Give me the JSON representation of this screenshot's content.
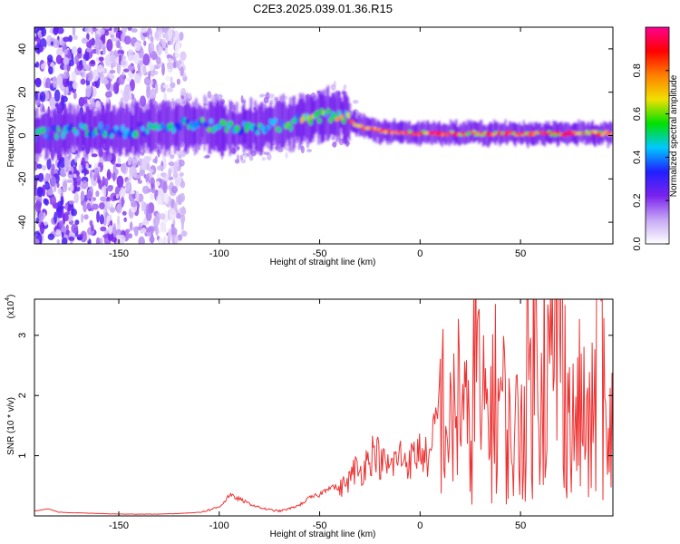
{
  "figure": {
    "title": "C2E3.2025.039.01.36.R15"
  },
  "chart_data": [
    {
      "type": "heatmap",
      "xlabel": "Height of straight line (km)",
      "ylabel": "Frequency (Hz)",
      "xlim": [
        -192,
        96
      ],
      "ylim": [
        -50,
        50
      ],
      "xticks": [
        -150,
        -100,
        -50,
        0,
        50
      ],
      "yticks": [
        -40,
        -20,
        0,
        20,
        40
      ],
      "colorbar": {
        "label": "Normalized spectral amplitude",
        "range": [
          0,
          1
        ],
        "ticks": [
          "0.0",
          "0.2",
          "0.4",
          "0.6",
          "0.8"
        ],
        "colormap": [
          "#ffffff",
          "#c6a8f5",
          "#7a22ee",
          "#2020ff",
          "#00c8ff",
          "#00e000",
          "#f0e000",
          "#ff8000",
          "#ff0000",
          "#ff0090"
        ]
      },
      "ridge": {
        "description_points_x": [
          -192,
          -170,
          -150,
          -130,
          -110,
          -90,
          -75,
          -60,
          -50,
          -40,
          -35,
          -30,
          -20,
          0,
          25,
          50,
          75,
          96
        ],
        "frequency_y": [
          0,
          3,
          2,
          4,
          5,
          3,
          4,
          7,
          9,
          10,
          7,
          4,
          2,
          1,
          1,
          1,
          1,
          1
        ]
      }
    },
    {
      "type": "line",
      "xlabel": "Height of straight line (km)",
      "ylabel": "SNR (10 * v/v)",
      "yscale_label": "(x10",
      "yscale_exp": "4",
      "xlim": [
        -192,
        96
      ],
      "ylim": [
        0,
        3.6
      ],
      "xticks": [
        -150,
        -100,
        -50,
        0,
        50
      ],
      "yticks": [
        1,
        2,
        3
      ],
      "series": [
        {
          "color": "#ee3333",
          "x": [
            -192,
            -185,
            -180,
            -170,
            -160,
            -150,
            -140,
            -130,
            -120,
            -110,
            -105,
            -100,
            -97,
            -95,
            -92,
            -90,
            -85,
            -80,
            -75,
            -70,
            -65,
            -60,
            -55,
            -50,
            -45,
            -40,
            -35,
            -32,
            -30,
            -25,
            -22,
            -20,
            -15,
            -10,
            -5,
            0,
            5,
            10,
            15,
            20,
            25,
            28,
            30,
            35,
            40,
            45,
            50,
            55,
            60,
            65,
            70,
            75,
            80,
            85,
            90,
            93,
            96
          ],
          "y": [
            0.08,
            0.12,
            0.06,
            0.05,
            0.04,
            0.03,
            0.03,
            0.03,
            0.04,
            0.06,
            0.1,
            0.15,
            0.25,
            0.35,
            0.3,
            0.28,
            0.2,
            0.14,
            0.1,
            0.08,
            0.12,
            0.18,
            0.3,
            0.35,
            0.5,
            0.45,
            0.6,
            0.8,
            0.7,
            1.0,
            1.1,
            0.9,
            0.8,
            1.0,
            0.9,
            1.1,
            0.9,
            2.0,
            1.3,
            2.2,
            1.0,
            3.25,
            1.5,
            1.8,
            2.0,
            1.2,
            1.5,
            2.4,
            3.0,
            2.2,
            3.7,
            1.3,
            1.8,
            1.2,
            3.7,
            0.6,
            1.8
          ]
        }
      ]
    }
  ]
}
